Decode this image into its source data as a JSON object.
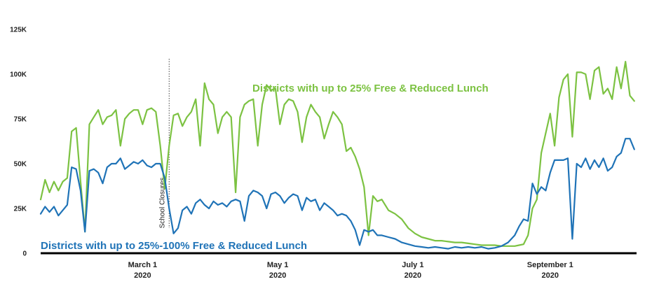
{
  "chart_data": {
    "type": "line",
    "xlim": [
      "2020-01-15",
      "2020-10-10"
    ],
    "ylim": [
      0,
      125000
    ],
    "grid": false,
    "y_ticks": [
      {
        "value": 0,
        "label": "0"
      },
      {
        "value": 25000,
        "label": "25K"
      },
      {
        "value": 50000,
        "label": "50K"
      },
      {
        "value": 75000,
        "label": "75K"
      },
      {
        "value": 100000,
        "label": "100K"
      },
      {
        "value": 125000,
        "label": "125K"
      }
    ],
    "x_ticks": [
      {
        "value": "2020-03-01",
        "month": "March 1",
        "year": "2020"
      },
      {
        "value": "2020-05-01",
        "month": "May 1",
        "year": "2020"
      },
      {
        "value": "2020-07-01",
        "month": "July 1",
        "year": "2020"
      },
      {
        "value": "2020-09-01",
        "month": "September 1",
        "year": "2020"
      }
    ],
    "annotations": [
      {
        "x": "2020-03-13",
        "label": "School Closures"
      }
    ],
    "series": [
      {
        "name": "Districts with up to 25% Free & Reduced Lunch",
        "color": "#7cc242",
        "x": [
          "2020-01-15",
          "2020-01-17",
          "2020-01-19",
          "2020-01-21",
          "2020-01-23",
          "2020-01-25",
          "2020-01-27",
          "2020-01-29",
          "2020-01-31",
          "2020-02-02",
          "2020-02-04",
          "2020-02-06",
          "2020-02-08",
          "2020-02-10",
          "2020-02-12",
          "2020-02-14",
          "2020-02-16",
          "2020-02-18",
          "2020-02-20",
          "2020-02-22",
          "2020-02-24",
          "2020-02-26",
          "2020-02-28",
          "2020-03-01",
          "2020-03-03",
          "2020-03-05",
          "2020-03-07",
          "2020-03-09",
          "2020-03-11",
          "2020-03-13",
          "2020-03-15",
          "2020-03-17",
          "2020-03-19",
          "2020-03-21",
          "2020-03-23",
          "2020-03-25",
          "2020-03-27",
          "2020-03-29",
          "2020-03-31",
          "2020-04-02",
          "2020-04-04",
          "2020-04-06",
          "2020-04-08",
          "2020-04-10",
          "2020-04-12",
          "2020-04-14",
          "2020-04-16",
          "2020-04-18",
          "2020-04-20",
          "2020-04-22",
          "2020-04-24",
          "2020-04-26",
          "2020-04-28",
          "2020-04-30",
          "2020-05-02",
          "2020-05-04",
          "2020-05-06",
          "2020-05-08",
          "2020-05-10",
          "2020-05-12",
          "2020-05-14",
          "2020-05-16",
          "2020-05-18",
          "2020-05-20",
          "2020-05-22",
          "2020-05-24",
          "2020-05-26",
          "2020-05-28",
          "2020-05-30",
          "2020-06-01",
          "2020-06-03",
          "2020-06-05",
          "2020-06-07",
          "2020-06-09",
          "2020-06-11",
          "2020-06-13",
          "2020-06-15",
          "2020-06-17",
          "2020-06-20",
          "2020-06-23",
          "2020-06-26",
          "2020-06-29",
          "2020-07-02",
          "2020-07-05",
          "2020-07-08",
          "2020-07-11",
          "2020-07-14",
          "2020-07-17",
          "2020-07-20",
          "2020-07-23",
          "2020-07-26",
          "2020-07-29",
          "2020-08-01",
          "2020-08-04",
          "2020-08-07",
          "2020-08-10",
          "2020-08-13",
          "2020-08-16",
          "2020-08-18",
          "2020-08-20",
          "2020-08-22",
          "2020-08-24",
          "2020-08-26",
          "2020-08-28",
          "2020-08-30",
          "2020-09-01",
          "2020-09-03",
          "2020-09-05",
          "2020-09-07",
          "2020-09-09",
          "2020-09-11",
          "2020-09-13",
          "2020-09-15",
          "2020-09-17",
          "2020-09-19",
          "2020-09-21",
          "2020-09-23",
          "2020-09-25",
          "2020-09-27",
          "2020-09-29",
          "2020-10-01",
          "2020-10-03",
          "2020-10-05",
          "2020-10-07",
          "2020-10-09"
        ],
        "values": [
          30000,
          41000,
          34000,
          40000,
          35000,
          40000,
          42000,
          68000,
          70000,
          40000,
          12000,
          72000,
          76000,
          80000,
          72000,
          76000,
          77000,
          80000,
          60000,
          75000,
          78000,
          80000,
          80000,
          72000,
          80000,
          81000,
          79000,
          60000,
          36000,
          60000,
          77000,
          78000,
          71000,
          76000,
          79000,
          86000,
          60000,
          95000,
          86000,
          83000,
          67000,
          76000,
          79000,
          76000,
          34000,
          76000,
          83000,
          85000,
          86000,
          60000,
          83000,
          94000,
          91000,
          92000,
          72000,
          83000,
          86000,
          85000,
          79000,
          62000,
          76000,
          83000,
          79000,
          76000,
          64000,
          72000,
          79000,
          76000,
          72000,
          57000,
          59000,
          54000,
          47000,
          37000,
          10000,
          32000,
          29000,
          30000,
          24000,
          22000,
          19000,
          14000,
          11000,
          9000,
          8000,
          7000,
          7000,
          6500,
          6000,
          6000,
          5500,
          5000,
          4500,
          4500,
          4500,
          4000,
          4000,
          4000,
          4500,
          5000,
          10000,
          25000,
          30000,
          56000,
          67000,
          78000,
          60000,
          87000,
          97000,
          100000,
          65000,
          101000,
          101000,
          100000,
          86000,
          102000,
          104000,
          89000,
          92000,
          86000,
          104000,
          92000,
          107000,
          88000,
          85000
        ]
      },
      {
        "name": "Districts with up to 25%-100% Free & Reduced Lunch",
        "color": "#1f73b7",
        "x": [
          "2020-01-15",
          "2020-01-17",
          "2020-01-19",
          "2020-01-21",
          "2020-01-23",
          "2020-01-25",
          "2020-01-27",
          "2020-01-29",
          "2020-01-31",
          "2020-02-02",
          "2020-02-04",
          "2020-02-06",
          "2020-02-08",
          "2020-02-10",
          "2020-02-12",
          "2020-02-14",
          "2020-02-16",
          "2020-02-18",
          "2020-02-20",
          "2020-02-22",
          "2020-02-24",
          "2020-02-26",
          "2020-02-28",
          "2020-03-01",
          "2020-03-03",
          "2020-03-05",
          "2020-03-07",
          "2020-03-09",
          "2020-03-11",
          "2020-03-13",
          "2020-03-15",
          "2020-03-17",
          "2020-03-19",
          "2020-03-21",
          "2020-03-23",
          "2020-03-25",
          "2020-03-27",
          "2020-03-29",
          "2020-03-31",
          "2020-04-02",
          "2020-04-04",
          "2020-04-06",
          "2020-04-08",
          "2020-04-10",
          "2020-04-12",
          "2020-04-14",
          "2020-04-16",
          "2020-04-18",
          "2020-04-20",
          "2020-04-22",
          "2020-04-24",
          "2020-04-26",
          "2020-04-28",
          "2020-04-30",
          "2020-05-02",
          "2020-05-04",
          "2020-05-06",
          "2020-05-08",
          "2020-05-10",
          "2020-05-12",
          "2020-05-14",
          "2020-05-16",
          "2020-05-18",
          "2020-05-20",
          "2020-05-22",
          "2020-05-24",
          "2020-05-26",
          "2020-05-28",
          "2020-05-30",
          "2020-06-01",
          "2020-06-03",
          "2020-06-05",
          "2020-06-07",
          "2020-06-09",
          "2020-06-11",
          "2020-06-13",
          "2020-06-15",
          "2020-06-17",
          "2020-06-20",
          "2020-06-23",
          "2020-06-26",
          "2020-06-29",
          "2020-07-02",
          "2020-07-05",
          "2020-07-08",
          "2020-07-11",
          "2020-07-14",
          "2020-07-17",
          "2020-07-20",
          "2020-07-23",
          "2020-07-26",
          "2020-07-29",
          "2020-08-01",
          "2020-08-04",
          "2020-08-07",
          "2020-08-10",
          "2020-08-13",
          "2020-08-16",
          "2020-08-18",
          "2020-08-20",
          "2020-08-22",
          "2020-08-24",
          "2020-08-26",
          "2020-08-28",
          "2020-08-30",
          "2020-09-01",
          "2020-09-03",
          "2020-09-05",
          "2020-09-07",
          "2020-09-09",
          "2020-09-11",
          "2020-09-13",
          "2020-09-15",
          "2020-09-17",
          "2020-09-19",
          "2020-09-21",
          "2020-09-23",
          "2020-09-25",
          "2020-09-27",
          "2020-09-29",
          "2020-10-01",
          "2020-10-03",
          "2020-10-05",
          "2020-10-07",
          "2020-10-09"
        ],
        "values": [
          22000,
          26000,
          23000,
          26000,
          21000,
          24000,
          27000,
          48000,
          47000,
          35000,
          12000,
          46000,
          47000,
          45000,
          39000,
          48000,
          50000,
          50000,
          53000,
          47000,
          49000,
          51000,
          50000,
          52000,
          49000,
          48000,
          50000,
          50000,
          42000,
          25000,
          11000,
          14000,
          24000,
          26000,
          22000,
          28000,
          30000,
          27000,
          25000,
          29000,
          27000,
          28000,
          26000,
          29000,
          30000,
          29000,
          18000,
          32000,
          35000,
          34000,
          32000,
          25000,
          33000,
          34000,
          32000,
          28000,
          31000,
          33000,
          32000,
          24000,
          31000,
          29000,
          30000,
          24000,
          28000,
          26000,
          24000,
          21000,
          22000,
          21000,
          18000,
          13000,
          4500,
          13000,
          12000,
          13000,
          10000,
          10000,
          9000,
          8000,
          6000,
          5000,
          4000,
          3500,
          3000,
          3500,
          3000,
          2500,
          3500,
          3000,
          3500,
          3000,
          3500,
          2500,
          3000,
          4000,
          6000,
          10000,
          15000,
          19000,
          18000,
          39000,
          33000,
          37000,
          35000,
          45000,
          52000,
          52000,
          52000,
          53000,
          8000,
          50000,
          48000,
          53000,
          47000,
          52000,
          48000,
          53000,
          46000,
          48000,
          54000,
          56000,
          64000,
          64000,
          58000
        ]
      }
    ]
  }
}
